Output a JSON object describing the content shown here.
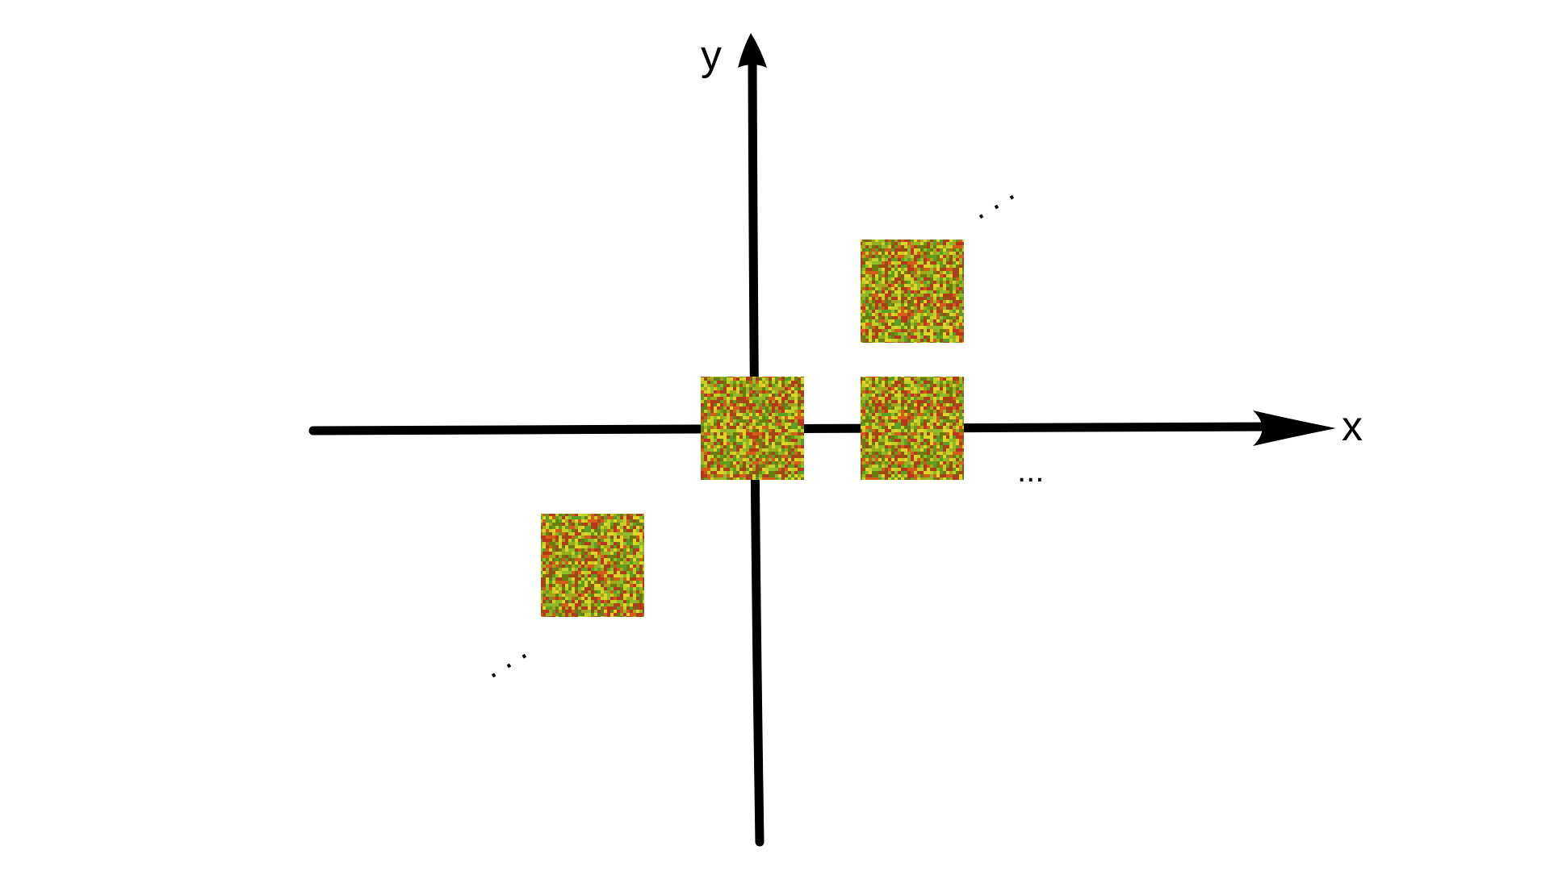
{
  "axes": {
    "x_label": "x",
    "y_label": "y"
  },
  "ellipses": {
    "x_axis": "...",
    "diag_upper": ". . .",
    "diag_lower": ". . ."
  },
  "colors": {
    "axis": "#000000",
    "background": "#ffffff",
    "noise_palette": [
      "#a5a51c",
      "#8dbb2a",
      "#c4d028",
      "#d25c1a",
      "#6a7b10",
      "#b8361a",
      "#e2d22c",
      "#5d9d22",
      "#9a4c12"
    ]
  },
  "tiles": [
    {
      "name": "tile-origin",
      "grid_x": 0,
      "grid_y": 0
    },
    {
      "name": "tile-x-plus-1",
      "grid_x": 1,
      "grid_y": 0
    },
    {
      "name": "tile-diag-plus-1",
      "grid_x": 1,
      "grid_y": 1
    },
    {
      "name": "tile-diag-minus-1",
      "grid_x": -1,
      "grid_y": -1
    }
  ]
}
